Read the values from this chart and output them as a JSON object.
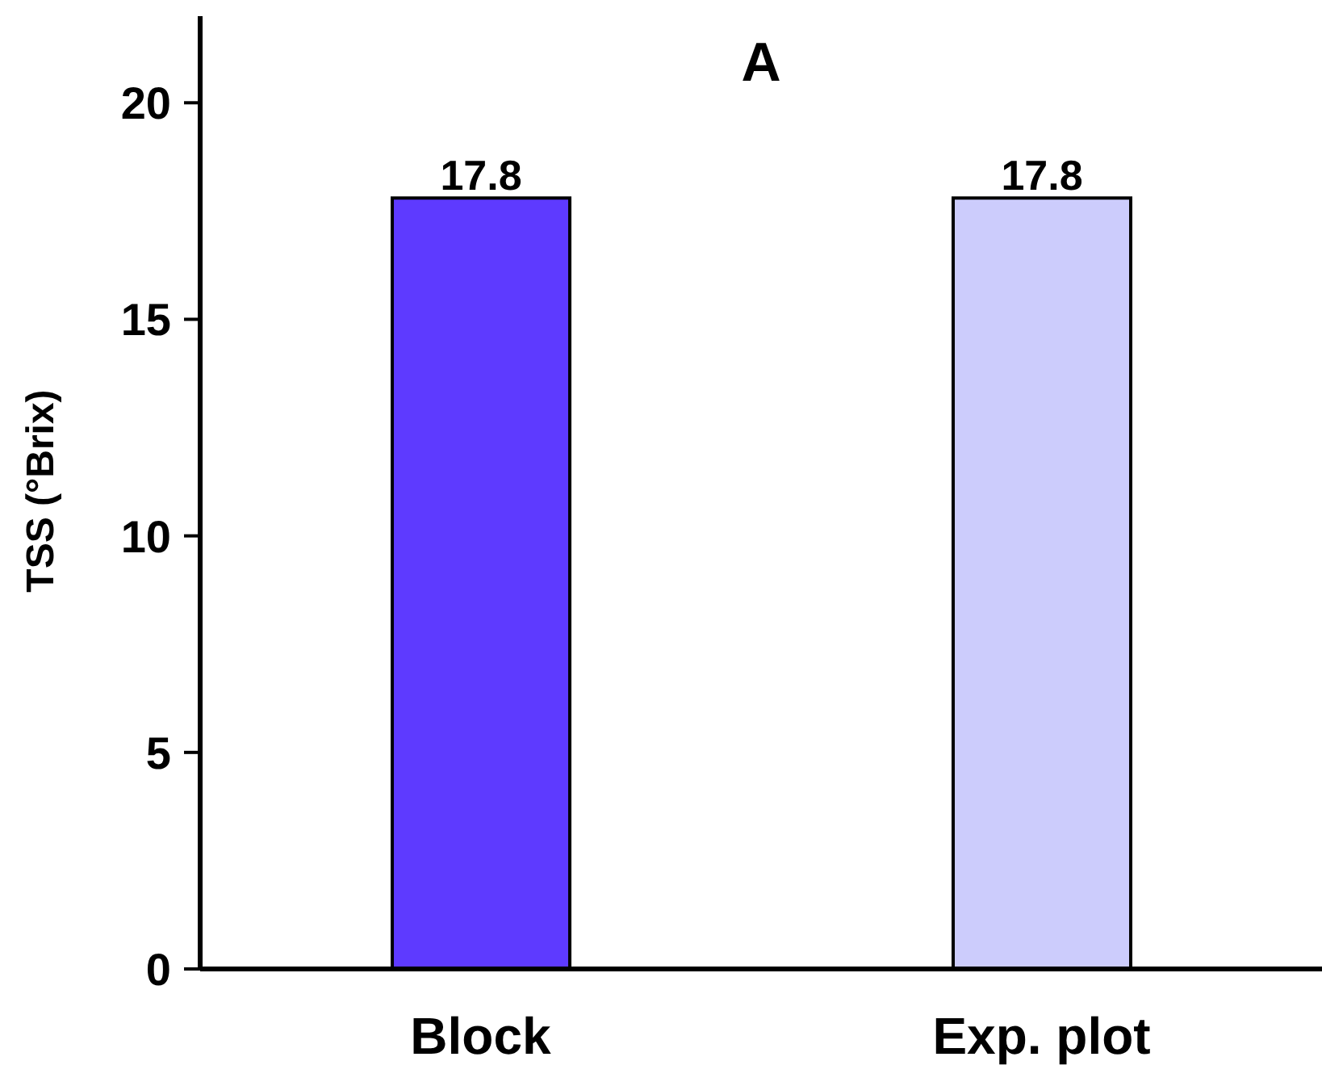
{
  "chart_data": {
    "type": "bar",
    "title": "A",
    "ylabel": "TSS (°Brix)",
    "categories": [
      "Block",
      "Exp. plot"
    ],
    "values": [
      17.8,
      17.8
    ],
    "colors": [
      "#5e3aff",
      "#ccccfc"
    ],
    "ylim": [
      0,
      22
    ],
    "yticks": [
      0,
      5,
      10,
      15,
      20
    ],
    "data_labels": true,
    "grid": false,
    "legend": false
  }
}
